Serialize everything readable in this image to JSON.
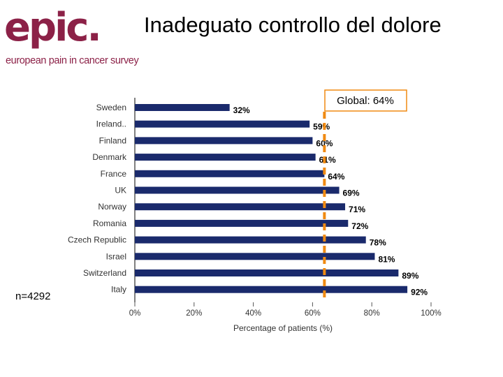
{
  "header": {
    "logo_text": "epic.",
    "logo_tagline": "european pain in cancer survey",
    "title": "Inadeguato controllo del dolore"
  },
  "sample_size": "n=4292",
  "colors": {
    "bar": "#1a2a6c",
    "global_line": "#f08a12",
    "brand": "#8c2147"
  },
  "chart_data": {
    "type": "bar",
    "orientation": "horizontal",
    "categories": [
      "Sweden",
      "Ireland..",
      "Finland",
      "Denmark",
      "France",
      "UK",
      "Norway",
      "Romania",
      "Czech Republic",
      "Israel",
      "Switzerland",
      "Italy"
    ],
    "values": [
      32,
      59,
      60,
      61,
      64,
      69,
      71,
      72,
      78,
      81,
      89,
      92
    ],
    "value_labels": [
      "32%",
      "59%",
      "60%",
      "61%",
      "64%",
      "69%",
      "71%",
      "72%",
      "78%",
      "81%",
      "89%",
      "92%"
    ],
    "xlabel": "Percentage of patients (%)",
    "xlim": [
      0,
      100
    ],
    "xticks": [
      0,
      20,
      40,
      60,
      80,
      100
    ],
    "xtick_labels": [
      "0%",
      "20%",
      "40%",
      "60%",
      "80%",
      "100%"
    ],
    "reference_line": {
      "value": 64,
      "label": "Global: 64%"
    }
  }
}
